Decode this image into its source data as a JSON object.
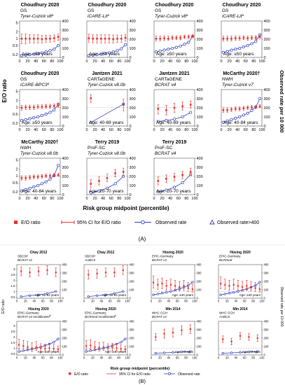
{
  "figure": {
    "panel_A_label": "(A)",
    "panel_B_label": "(B)",
    "colors": {
      "eo": "#e8322b",
      "observed": "#2a3fc0",
      "axis": "#333333",
      "ref": "#999999"
    }
  },
  "panel_A": {
    "y_left_label": "E/O ratio",
    "y_right_label": "Observed rate per 10 000",
    "x_label": "Risk group midpoint (percentile)",
    "x_ticks": [
      0,
      20,
      40,
      60,
      80,
      100
    ],
    "y_left_ticks": [
      0.2,
      0.5,
      1.0,
      2.0,
      5.0
    ],
    "y_right_ticks": [
      0,
      100,
      200,
      300,
      400
    ],
    "legend": {
      "eo": "E/O ratio",
      "ci": "95% CI for E/O ratio",
      "observed": "Observed rate",
      "over400": "Observed rate>400"
    }
  },
  "panel_B": {
    "y_left_label": "E/O ratio",
    "y_right_label": "Observed rate per 10 000",
    "x_label": "Risk group midpoint (percentile)",
    "x_ticks": [
      0,
      20,
      40,
      60,
      80,
      100
    ],
    "y_left_ticks": [
      0.5,
      1.0,
      1.5,
      2.0,
      2.5,
      3.0
    ],
    "y_right_ticks": [
      0,
      100,
      200,
      300,
      400
    ],
    "legend": {
      "eo": "E/O ratio",
      "ci": "95% CI for E/O ratio",
      "observed": "Observed rate"
    }
  },
  "chart_data": [
    {
      "type": "line",
      "panel": "A",
      "study": "Choudhury 2020",
      "model_line1": "GS",
      "model_line2": "Tyrer-Cuzick v8",
      "sup": "a",
      "age": "Age: <50 years",
      "x": [
        5,
        15,
        25,
        35,
        45,
        55,
        65,
        75,
        85,
        95
      ],
      "eo": [
        1.0,
        1.0,
        1.0,
        1.0,
        1.0,
        0.95,
        1.0,
        1.0,
        1.05,
        1.2
      ],
      "ci_low": [
        0.6,
        0.6,
        0.65,
        0.65,
        0.65,
        0.65,
        0.7,
        0.7,
        0.75,
        0.85
      ],
      "ci_high": [
        1.6,
        1.6,
        1.5,
        1.5,
        1.5,
        1.4,
        1.4,
        1.4,
        1.45,
        1.6
      ],
      "observed": [
        20,
        25,
        30,
        35,
        40,
        50,
        60,
        75,
        90,
        130
      ]
    },
    {
      "type": "line",
      "panel": "A",
      "study": "Choudhury 2020",
      "model_line1": "GS",
      "model_line2": "iCARE-Lit",
      "sup": "a",
      "age": "Age: <50 years",
      "x": [
        5,
        15,
        25,
        35,
        45,
        55,
        65,
        75,
        85,
        95
      ],
      "eo": [
        1.05,
        1.0,
        1.0,
        1.0,
        1.0,
        1.0,
        0.95,
        1.0,
        1.0,
        1.1
      ],
      "ci_low": [
        0.7,
        0.65,
        0.65,
        0.65,
        0.65,
        0.65,
        0.65,
        0.7,
        0.7,
        0.8
      ],
      "ci_high": [
        1.6,
        1.5,
        1.5,
        1.5,
        1.5,
        1.5,
        1.45,
        1.45,
        1.45,
        1.55
      ],
      "observed": [
        20,
        25,
        30,
        35,
        45,
        50,
        60,
        75,
        95,
        140
      ]
    },
    {
      "type": "line",
      "panel": "A",
      "study": "Choudhury 2020",
      "model_line1": "GS",
      "model_line2": "Tyrer-Cuzick v8",
      "sup": "a",
      "age": "Age: ≥50 years",
      "x": [
        5,
        15,
        25,
        35,
        45,
        55,
        65,
        75,
        85,
        95
      ],
      "eo": [
        1.0,
        1.0,
        1.05,
        1.0,
        1.1,
        1.1,
        1.1,
        1.2,
        1.2,
        1.3
      ],
      "ci_low": [
        0.8,
        0.8,
        0.85,
        0.85,
        0.9,
        0.9,
        0.9,
        1.0,
        1.0,
        1.1
      ],
      "ci_high": [
        1.3,
        1.3,
        1.3,
        1.3,
        1.35,
        1.35,
        1.35,
        1.45,
        1.45,
        1.55
      ],
      "observed": [
        60,
        70,
        80,
        90,
        100,
        110,
        125,
        145,
        165,
        230
      ]
    },
    {
      "type": "line",
      "panel": "A",
      "study": "Choudhury 2020",
      "model_line1": "GS",
      "model_line2": "iCARE-Lit",
      "sup": "a",
      "age": "Age: ≥50 years",
      "x": [
        5,
        15,
        25,
        35,
        45,
        55,
        65,
        75,
        85,
        95
      ],
      "eo": [
        1.0,
        1.0,
        1.0,
        1.05,
        1.05,
        1.1,
        1.05,
        1.1,
        1.1,
        1.2
      ],
      "ci_low": [
        0.8,
        0.8,
        0.8,
        0.85,
        0.85,
        0.9,
        0.85,
        0.9,
        0.9,
        1.0
      ],
      "ci_high": [
        1.3,
        1.3,
        1.3,
        1.3,
        1.3,
        1.35,
        1.3,
        1.35,
        1.35,
        1.45
      ],
      "observed": [
        55,
        65,
        80,
        90,
        100,
        115,
        130,
        150,
        175,
        250
      ]
    },
    {
      "type": "line",
      "panel": "A",
      "study": "Choudhury 2020",
      "model_line1": "GS",
      "model_line2": "iCARE-BPC3",
      "sup": "a",
      "age": "Age: ≥50 years",
      "x": [
        5,
        15,
        25,
        35,
        45,
        55,
        65,
        75,
        85,
        95
      ],
      "eo": [
        0.95,
        1.0,
        1.0,
        1.0,
        1.05,
        1.05,
        1.1,
        1.1,
        1.15,
        1.2
      ],
      "ci_low": [
        0.75,
        0.8,
        0.8,
        0.8,
        0.85,
        0.85,
        0.9,
        0.9,
        0.95,
        1.0
      ],
      "ci_high": [
        1.2,
        1.25,
        1.25,
        1.25,
        1.3,
        1.3,
        1.35,
        1.35,
        1.4,
        1.45
      ],
      "observed": [
        60,
        70,
        80,
        90,
        100,
        115,
        130,
        150,
        175,
        240
      ]
    },
    {
      "type": "line",
      "panel": "A",
      "study": "Jantzen 2021",
      "model_line1": "CARTaGENE",
      "model_line2": "Tyrer-Cuzick v8.0b",
      "sup": "",
      "age": "Age: 40-69 years",
      "x": [
        10,
        90
      ],
      "eo": [
        2.5,
        1.3
      ],
      "ci_low": [
        1.6,
        0.7
      ],
      "ci_high": [
        3.6,
        2.3
      ],
      "observed": [
        40,
        240
      ]
    },
    {
      "type": "line",
      "panel": "A",
      "study": "Jantzen 2021",
      "model_line1": "CARTaGENE",
      "model_line2": "BCRAT v4",
      "sup": "",
      "age": "Age: 40-69 years",
      "x": [
        10,
        30,
        50,
        70,
        90
      ],
      "eo": [
        0.85,
        0.75,
        0.95,
        1.1,
        1.3
      ],
      "ci_low": [
        0.5,
        0.45,
        0.6,
        0.75,
        0.9
      ],
      "ci_high": [
        1.3,
        1.2,
        1.5,
        1.7,
        1.9
      ],
      "observed": [
        50,
        60,
        75,
        100,
        150
      ]
    },
    {
      "type": "line",
      "panel": "A",
      "study": "McCarthy 2020",
      "study_sup": "†",
      "model_line1": "NWH",
      "model_line2": "Tyrer-Cuzick v7",
      "sup": "",
      "age": "Age: 40-84 years",
      "x": [
        5,
        15,
        25,
        35,
        45,
        55,
        65,
        75,
        85,
        95
      ],
      "eo": [
        0.75,
        0.75,
        0.8,
        0.85,
        0.85,
        0.9,
        0.95,
        1.0,
        1.0,
        1.1
      ],
      "ci_low": [
        0.6,
        0.6,
        0.65,
        0.7,
        0.7,
        0.75,
        0.8,
        0.85,
        0.85,
        0.95
      ],
      "ci_high": [
        0.95,
        0.95,
        1.0,
        1.05,
        1.05,
        1.1,
        1.15,
        1.2,
        1.2,
        1.3
      ],
      "observed": [
        40,
        55,
        70,
        85,
        100,
        120,
        140,
        170,
        210,
        300
      ]
    },
    {
      "type": "line",
      "panel": "A",
      "study": "McCarthy 2020",
      "study_sup": "†",
      "model_line1": "NWH",
      "model_line2": "Tyrer-Cuzick v8.0b",
      "sup": "",
      "age": "Age: 40-84 years",
      "x": [
        5,
        15,
        25,
        35,
        45,
        55,
        65,
        75,
        85,
        95
      ],
      "eo": [
        0.8,
        0.8,
        0.85,
        0.9,
        0.9,
        0.95,
        1.0,
        1.0,
        1.05,
        1.1
      ],
      "ci_low": [
        0.65,
        0.65,
        0.7,
        0.75,
        0.75,
        0.8,
        0.85,
        0.85,
        0.9,
        0.95
      ],
      "ci_high": [
        1.0,
        1.0,
        1.05,
        1.1,
        1.1,
        1.15,
        1.2,
        1.2,
        1.25,
        1.3
      ],
      "observed": [
        40,
        55,
        70,
        85,
        100,
        120,
        140,
        170,
        210,
        320
      ]
    },
    {
      "type": "line",
      "panel": "A",
      "study": "Terry 2019",
      "model_line1": "ProF-SC",
      "model_line2": "Tyrer-Cuzick v8.0b",
      "sup": "",
      "age": "Age: 20-70 years",
      "x": [
        10,
        30,
        50,
        70,
        90
      ],
      "eo": [
        0.45,
        0.6,
        0.8,
        1.3,
        1.5
      ],
      "ci_low": [
        0.3,
        0.4,
        0.55,
        0.9,
        1.0
      ],
      "ci_high": [
        0.7,
        0.9,
        1.2,
        1.9,
        2.2
      ],
      "observed": [
        20,
        40,
        70,
        120,
        200
      ]
    },
    {
      "type": "line",
      "panel": "A",
      "study": "Terry 2019",
      "model_line1": "ProF-SC",
      "model_line2": "BCRAT v4",
      "sup": "",
      "age": "Age: 20-70 years",
      "x": [
        10,
        30,
        50,
        70,
        90
      ],
      "eo": [
        0.6,
        0.75,
        0.9,
        1.1,
        1.5
      ],
      "ci_low": [
        0.4,
        0.5,
        0.6,
        0.75,
        1.0
      ],
      "ci_high": [
        0.9,
        1.1,
        1.3,
        1.6,
        2.2
      ],
      "observed": [
        30,
        50,
        80,
        130,
        220
      ]
    },
    {
      "type": "line",
      "panel": "B",
      "study": "Chay 2012",
      "model_line1": "SBCSP",
      "model_line2": "BCRAT v2",
      "sup": "",
      "age": "Age: 50-64 years",
      "x": [
        10,
        30,
        50,
        70,
        90
      ],
      "eo": [
        2.8,
        2.7,
        2.8,
        2.9,
        2.7
      ],
      "ci_low": [
        2.4,
        2.3,
        2.4,
        2.5,
        2.3
      ],
      "ci_high": [
        3.2,
        3.1,
        3.2,
        3.3,
        3.1
      ],
      "observed": [
        20,
        30,
        40,
        55,
        80
      ]
    },
    {
      "type": "line",
      "panel": "B",
      "study": "Chay 2012",
      "model_line1": "SBCSP",
      "model_line2": "AABCS",
      "sup": "",
      "age": "Age: 50-64 years",
      "x": [
        10,
        30,
        50,
        70,
        90
      ],
      "eo": [
        2.5,
        2.6,
        2.7,
        2.7,
        2.9
      ],
      "ci_low": [
        2.1,
        2.2,
        2.3,
        2.3,
        2.5
      ],
      "ci_high": [
        2.9,
        3.0,
        3.1,
        3.1,
        3.3
      ],
      "observed": [
        20,
        30,
        40,
        55,
        80
      ]
    },
    {
      "type": "line",
      "panel": "B",
      "study": "Hüsing 2020",
      "model_line1": "EPIC-Germany",
      "model_line2": "BCRAT v3",
      "sup": "",
      "age": "Age: ≥40 years",
      "x": [
        5,
        15,
        25,
        35,
        45,
        55,
        65,
        75,
        85,
        95
      ],
      "eo": [
        1.8,
        1.6,
        1.7,
        1.5,
        1.6,
        1.5,
        1.4,
        1.5,
        1.3,
        1.2
      ],
      "ci_low": [
        1.3,
        1.2,
        1.25,
        1.1,
        1.2,
        1.1,
        1.05,
        1.1,
        1.0,
        0.95
      ],
      "ci_high": [
        2.4,
        2.1,
        2.2,
        2.0,
        2.1,
        2.0,
        1.9,
        2.0,
        1.8,
        1.6
      ],
      "observed": [
        40,
        50,
        60,
        70,
        80,
        95,
        110,
        130,
        150,
        190
      ]
    },
    {
      "type": "line",
      "panel": "B",
      "study": "Hüsing 2020",
      "model_line1": "EPIC-Germany",
      "model_line2": "BCRmod",
      "sup": "",
      "age": "Age: ≥40 years",
      "x": [
        5,
        15,
        25,
        35,
        45,
        55,
        65,
        75,
        85,
        95
      ],
      "eo": [
        1.7,
        1.6,
        1.5,
        1.6,
        1.5,
        1.4,
        1.5,
        1.4,
        1.3,
        1.2
      ],
      "ci_low": [
        1.25,
        1.2,
        1.1,
        1.2,
        1.1,
        1.05,
        1.1,
        1.05,
        1.0,
        0.95
      ],
      "ci_high": [
        2.3,
        2.1,
        2.0,
        2.1,
        2.0,
        1.9,
        2.0,
        1.9,
        1.8,
        1.6
      ],
      "observed": [
        40,
        50,
        60,
        70,
        80,
        95,
        110,
        130,
        150,
        190
      ]
    },
    {
      "type": "line",
      "panel": "B",
      "study": "Hüsing 2020",
      "model_line1": "EPIC-Germany",
      "model_line2": "BCRAT v3 recalibrated",
      "sup": "a",
      "age": "Age: ≥40 years",
      "x": [
        5,
        15,
        25,
        35,
        45,
        55,
        65,
        75,
        85,
        95
      ],
      "eo": [
        1.3,
        1.2,
        1.1,
        1.0,
        1.1,
        1.0,
        0.95,
        1.0,
        0.95,
        0.9
      ],
      "ci_low": [
        0.9,
        0.85,
        0.8,
        0.7,
        0.8,
        0.7,
        0.7,
        0.75,
        0.7,
        0.7
      ],
      "ci_high": [
        1.8,
        1.7,
        1.6,
        1.5,
        1.6,
        1.4,
        1.35,
        1.4,
        1.3,
        1.2
      ],
      "observed": [
        40,
        50,
        60,
        70,
        80,
        95,
        110,
        130,
        150,
        190
      ]
    },
    {
      "type": "line",
      "panel": "B",
      "study": "Hüsing 2020",
      "model_line1": "EPIC-Germany",
      "model_line2": "BCRmod recalibrated",
      "sup": "a",
      "age": "Age: ≥40 years",
      "x": [
        5,
        15,
        25,
        35,
        45,
        55,
        65,
        75,
        85,
        95
      ],
      "eo": [
        1.2,
        1.25,
        1.1,
        1.05,
        1.1,
        1.0,
        1.05,
        1.0,
        0.95,
        0.9
      ],
      "ci_low": [
        0.85,
        0.9,
        0.8,
        0.75,
        0.8,
        0.7,
        0.75,
        0.75,
        0.7,
        0.7
      ],
      "ci_high": [
        1.7,
        1.75,
        1.6,
        1.5,
        1.55,
        1.4,
        1.45,
        1.4,
        1.3,
        1.2
      ],
      "observed": [
        40,
        50,
        60,
        70,
        80,
        95,
        110,
        130,
        150,
        190
      ]
    },
    {
      "type": "line",
      "panel": "B",
      "study": "Min 2014",
      "model_line1": "WHC CGH",
      "model_line2": "BCRAT v2",
      "sup": "",
      "age": "Age: All ages",
      "x": [
        10,
        30,
        50,
        70,
        90
      ],
      "eo": [
        2.0,
        2.3,
        2.4,
        2.6,
        2.7
      ],
      "ci_low": [
        1.7,
        1.9,
        2.0,
        2.2,
        2.3
      ],
      "ci_high": [
        2.3,
        2.7,
        2.8,
        3.0,
        3.1
      ],
      "observed": [
        20,
        25,
        30,
        35,
        40
      ]
    },
    {
      "type": "line",
      "panel": "B",
      "study": "Min 2014",
      "model_line1": "WHC CGH",
      "model_line2": "AABCS",
      "sup": "",
      "age": "Age: All ages",
      "x": [
        10,
        30,
        50,
        70,
        90
      ],
      "eo": [
        1.8,
        1.6,
        2.1,
        2.0,
        1.9
      ],
      "ci_low": [
        1.5,
        1.3,
        1.8,
        1.7,
        1.6
      ],
      "ci_high": [
        2.1,
        1.9,
        2.4,
        2.3,
        2.2
      ],
      "observed": [
        20,
        25,
        30,
        35,
        40
      ]
    }
  ]
}
